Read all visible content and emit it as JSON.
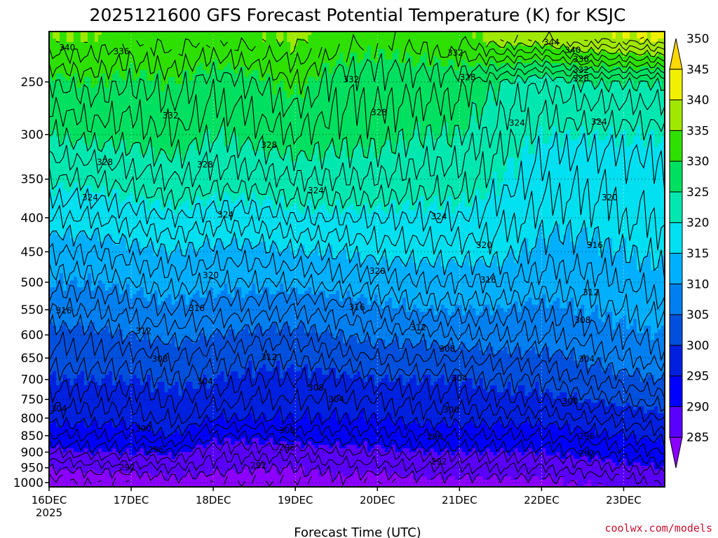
{
  "colors": {
    "ground": "#a0522d",
    "contour_line": "#000000",
    "credit": "#c8102e"
  },
  "chart_data": {
    "type": "heatmap",
    "title": "2025121600 GFS Forecast Potential Temperature (K) for KSJC",
    "xlabel": "Forecast Time (UTC)",
    "ylabel": "",
    "credit": "coolwx.com/models",
    "y_scale": "log",
    "y_inverted": true,
    "ylim": [
      1015,
      210
    ],
    "y_ticks": [
      250,
      300,
      350,
      400,
      450,
      500,
      550,
      600,
      650,
      700,
      750,
      800,
      850,
      900,
      950,
      1000
    ],
    "x_ticks": [
      "16DEC",
      "17DEC",
      "18DEC",
      "19DEC",
      "20DEC",
      "21DEC",
      "22DEC",
      "23DEC"
    ],
    "x_tick_year": "2025",
    "xlim": [
      0,
      7.5
    ],
    "surface_pressure": 1013,
    "grid": true,
    "colorbar": {
      "levels": [
        285,
        290,
        295,
        300,
        305,
        310,
        315,
        320,
        325,
        330,
        335,
        340,
        345,
        350
      ],
      "colors": [
        "#8b00ff",
        "#5a00ff",
        "#0000ff",
        "#0020e0",
        "#0050dd",
        "#0080f0",
        "#00b0ff",
        "#00e0f0",
        "#00e8b0",
        "#00e060",
        "#2ee000",
        "#a0e800",
        "#f0f000",
        "#ffd800"
      ],
      "extend": "both"
    },
    "levels_pressure": [
      1000,
      950,
      900,
      850,
      800,
      750,
      700,
      650,
      600,
      550,
      500,
      450,
      400,
      350,
      300,
      250,
      215
    ],
    "series": [
      {
        "time": 0.0,
        "theta": [
          287,
          290,
          294,
          298,
          301,
          303,
          305,
          307,
          309,
          312,
          315,
          318,
          322,
          326,
          330,
          334,
          340
        ]
      },
      {
        "time": 0.5,
        "theta": [
          288,
          291,
          295,
          298,
          301,
          303,
          305,
          307,
          309,
          312,
          315,
          318,
          322,
          326,
          331,
          335,
          340
        ]
      },
      {
        "time": 1.0,
        "theta": [
          288,
          291,
          295,
          298,
          301,
          303,
          305,
          307,
          310,
          313,
          316,
          319,
          323,
          327,
          331,
          334,
          338
        ]
      },
      {
        "time": 1.5,
        "theta": [
          289,
          292,
          296,
          300,
          303,
          304,
          306,
          308,
          311,
          314,
          317,
          320,
          324,
          328,
          332,
          335,
          339
        ]
      },
      {
        "time": 2.0,
        "theta": [
          288,
          291,
          293,
          296,
          300,
          303,
          305,
          307,
          310,
          313,
          316,
          319,
          323,
          327,
          330,
          333,
          338
        ]
      },
      {
        "time": 2.5,
        "theta": [
          288,
          290,
          293,
          296,
          300,
          302,
          304,
          306,
          309,
          313,
          316,
          319,
          323,
          327,
          331,
          334,
          339
        ]
      },
      {
        "time": 3.0,
        "theta": [
          288,
          290,
          293,
          297,
          300,
          302,
          304,
          306,
          309,
          312,
          316,
          320,
          324,
          328,
          332,
          336,
          341
        ]
      },
      {
        "time": 3.5,
        "theta": [
          289,
          291,
          294,
          297,
          300,
          302,
          304,
          307,
          310,
          313,
          317,
          320,
          324,
          328,
          331,
          333,
          337
        ]
      },
      {
        "time": 4.0,
        "theta": [
          288,
          291,
          294,
          297,
          300,
          302,
          305,
          308,
          311,
          314,
          317,
          321,
          324,
          328,
          331,
          333,
          336
        ]
      },
      {
        "time": 4.5,
        "theta": [
          289,
          292,
          295,
          298,
          301,
          303,
          305,
          308,
          311,
          315,
          318,
          321,
          324,
          327,
          330,
          333,
          337
        ]
      },
      {
        "time": 5.0,
        "theta": [
          289,
          292,
          295,
          298,
          301,
          303,
          305,
          308,
          312,
          315,
          318,
          321,
          324,
          327,
          330,
          333,
          338
        ]
      },
      {
        "time": 5.5,
        "theta": [
          289,
          292,
          295,
          298,
          301,
          304,
          306,
          309,
          312,
          315,
          318,
          321,
          323,
          325,
          327,
          330,
          342
        ]
      },
      {
        "time": 6.0,
        "theta": [
          289,
          292,
          295,
          298,
          301,
          304,
          306,
          309,
          312,
          314,
          317,
          319,
          321,
          323,
          325,
          328,
          342
        ]
      },
      {
        "time": 6.5,
        "theta": [
          290,
          293,
          296,
          299,
          302,
          305,
          308,
          310,
          313,
          315,
          317,
          319,
          321,
          322,
          325,
          330,
          344
        ]
      },
      {
        "time": 7.0,
        "theta": [
          291,
          294,
          297,
          300,
          303,
          306,
          309,
          312,
          314,
          316,
          318,
          320,
          322,
          323,
          325,
          330,
          345
        ]
      },
      {
        "time": 7.5,
        "theta": [
          292,
          295,
          298,
          301,
          304,
          307,
          310,
          313,
          315,
          317,
          319,
          321,
          322,
          323,
          325,
          330,
          346
        ]
      }
    ],
    "contour_labels": [
      {
        "text": "340",
        "t": 0.22,
        "p": 222
      },
      {
        "text": "336",
        "t": 0.88,
        "p": 225
      },
      {
        "text": "332",
        "t": 4.95,
        "p": 226
      },
      {
        "text": "344",
        "t": 6.12,
        "p": 218
      },
      {
        "text": "340",
        "t": 6.38,
        "p": 224
      },
      {
        "text": "336",
        "t": 6.48,
        "p": 231
      },
      {
        "text": "332",
        "t": 6.48,
        "p": 240
      },
      {
        "text": "328",
        "t": 6.48,
        "p": 247
      },
      {
        "text": "332",
        "t": 3.68,
        "p": 248
      },
      {
        "text": "328",
        "t": 5.1,
        "p": 246
      },
      {
        "text": "332",
        "t": 1.48,
        "p": 281
      },
      {
        "text": "328",
        "t": 4.02,
        "p": 278
      },
      {
        "text": "324",
        "t": 5.7,
        "p": 288
      },
      {
        "text": "324",
        "t": 6.7,
        "p": 287
      },
      {
        "text": "328",
        "t": 0.68,
        "p": 330
      },
      {
        "text": "328",
        "t": 1.9,
        "p": 333
      },
      {
        "text": "328",
        "t": 2.68,
        "p": 311
      },
      {
        "text": "324",
        "t": 3.25,
        "p": 364
      },
      {
        "text": "324",
        "t": 0.5,
        "p": 373
      },
      {
        "text": "324",
        "t": 2.15,
        "p": 396
      },
      {
        "text": "324",
        "t": 4.75,
        "p": 398
      },
      {
        "text": "320",
        "t": 6.83,
        "p": 373
      },
      {
        "text": "320",
        "t": 5.3,
        "p": 440
      },
      {
        "text": "316",
        "t": 6.65,
        "p": 440
      },
      {
        "text": "320",
        "t": 1.97,
        "p": 488
      },
      {
        "text": "320",
        "t": 4.0,
        "p": 481
      },
      {
        "text": "316",
        "t": 5.35,
        "p": 496
      },
      {
        "text": "312",
        "t": 6.6,
        "p": 518
      },
      {
        "text": "316",
        "t": 0.18,
        "p": 552
      },
      {
        "text": "316",
        "t": 1.8,
        "p": 547
      },
      {
        "text": "316",
        "t": 3.75,
        "p": 545
      },
      {
        "text": "312",
        "t": 4.5,
        "p": 585
      },
      {
        "text": "308",
        "t": 6.5,
        "p": 570
      },
      {
        "text": "312",
        "t": 1.15,
        "p": 592
      },
      {
        "text": "308",
        "t": 4.85,
        "p": 630
      },
      {
        "text": "308",
        "t": 1.35,
        "p": 652
      },
      {
        "text": "312",
        "t": 2.68,
        "p": 648
      },
      {
        "text": "304",
        "t": 5.0,
        "p": 697
      },
      {
        "text": "304",
        "t": 6.55,
        "p": 652
      },
      {
        "text": "304",
        "t": 1.9,
        "p": 705
      },
      {
        "text": "308",
        "t": 3.25,
        "p": 720
      },
      {
        "text": "304",
        "t": 3.5,
        "p": 750
      },
      {
        "text": "300",
        "t": 6.35,
        "p": 755
      },
      {
        "text": "304",
        "t": 0.12,
        "p": 775
      },
      {
        "text": "300",
        "t": 4.9,
        "p": 777
      },
      {
        "text": "300",
        "t": 1.15,
        "p": 830
      },
      {
        "text": "300",
        "t": 2.9,
        "p": 835
      },
      {
        "text": "296",
        "t": 4.7,
        "p": 853
      },
      {
        "text": "296",
        "t": 6.55,
        "p": 852
      },
      {
        "text": "296",
        "t": 1.3,
        "p": 893
      },
      {
        "text": "296",
        "t": 2.9,
        "p": 886
      },
      {
        "text": "292",
        "t": 6.55,
        "p": 905
      },
      {
        "text": "292",
        "t": 0.95,
        "p": 950
      },
      {
        "text": "292",
        "t": 2.55,
        "p": 943
      },
      {
        "text": "292",
        "t": 4.75,
        "p": 930
      }
    ]
  }
}
